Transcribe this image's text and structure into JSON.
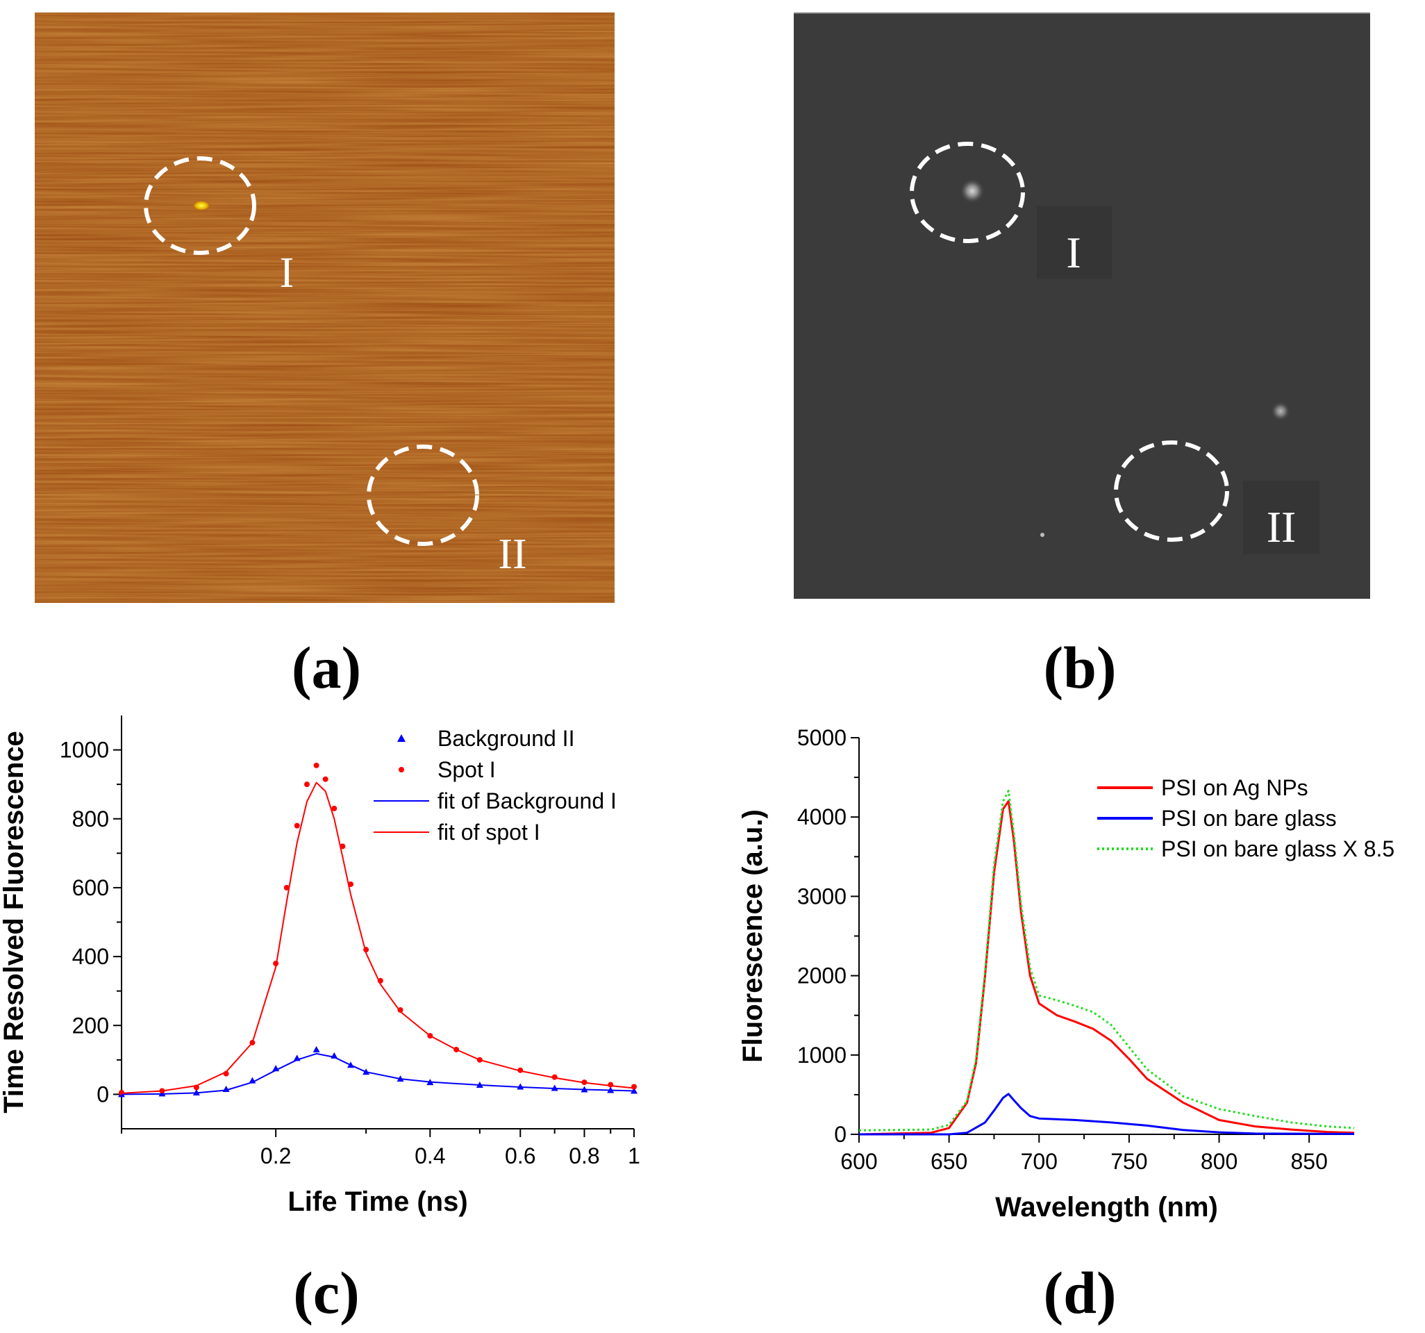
{
  "panels": {
    "a": {
      "label": "(a)",
      "marker_I": "I",
      "marker_II": "II"
    },
    "b": {
      "label": "(b)",
      "marker_I": "I",
      "marker_II": "II"
    },
    "c": {
      "label": "(c)"
    },
    "d": {
      "label": "(d)"
    }
  },
  "colors": {
    "afm_background": "#9a4a10",
    "afm_spot": "#ffe000",
    "fluor_background": "#3b3b3b",
    "circle": "#ffffff",
    "red": "#ff0000",
    "blue": "#0000ff",
    "green": "#22dd22"
  },
  "chart_data": [
    {
      "type": "scatter",
      "panel": "c",
      "xlabel": "Life Time (ns)",
      "ylabel": "Time Resolved Fluorescence",
      "xscale": "log",
      "xlim": [
        0.1,
        1.0
      ],
      "ylim": [
        -100,
        1100
      ],
      "xticks": [
        0.2,
        0.4,
        0.6,
        0.8,
        1.0
      ],
      "xtick_labels": [
        "0.2",
        "0.4",
        "0.6",
        "0.8",
        "1"
      ],
      "yticks": [
        0,
        200,
        400,
        600,
        800,
        1000
      ],
      "ytick_labels": [
        "0",
        "200",
        "400",
        "600",
        "800",
        "1000"
      ],
      "legend": [
        "Background II",
        "Spot I",
        "fit of Background I",
        "fit of spot I"
      ],
      "legend_position": "top-right",
      "series": [
        {
          "name": "Background II",
          "kind": "markers",
          "marker": "triangle",
          "color": "#0000ff",
          "x": [
            0.1,
            0.12,
            0.14,
            0.16,
            0.18,
            0.2,
            0.22,
            0.24,
            0.26,
            0.28,
            0.3,
            0.35,
            0.4,
            0.5,
            0.6,
            0.7,
            0.8,
            0.9,
            1.0
          ],
          "y": [
            0,
            2,
            5,
            15,
            40,
            75,
            105,
            130,
            112,
            85,
            65,
            45,
            35,
            27,
            22,
            18,
            14,
            12,
            10
          ]
        },
        {
          "name": "Spot I",
          "kind": "markers",
          "marker": "circle",
          "color": "#ff0000",
          "x": [
            0.1,
            0.12,
            0.14,
            0.16,
            0.18,
            0.2,
            0.21,
            0.22,
            0.23,
            0.24,
            0.25,
            0.26,
            0.27,
            0.28,
            0.3,
            0.32,
            0.35,
            0.4,
            0.45,
            0.5,
            0.6,
            0.7,
            0.8,
            0.9,
            1.0
          ],
          "y": [
            5,
            10,
            20,
            60,
            150,
            380,
            600,
            780,
            900,
            955,
            915,
            830,
            720,
            610,
            420,
            330,
            245,
            170,
            130,
            100,
            70,
            50,
            35,
            28,
            22
          ]
        },
        {
          "name": "fit of Background I",
          "kind": "line",
          "color": "#0000ff",
          "x": [
            0.1,
            0.12,
            0.14,
            0.16,
            0.18,
            0.2,
            0.22,
            0.24,
            0.26,
            0.28,
            0.3,
            0.35,
            0.4,
            0.5,
            0.6,
            0.7,
            0.8,
            0.9,
            1.0
          ],
          "y": [
            0,
            1,
            4,
            12,
            35,
            70,
            100,
            118,
            108,
            85,
            65,
            45,
            36,
            27,
            21,
            17,
            14,
            12,
            10
          ]
        },
        {
          "name": "fit of spot I",
          "kind": "line",
          "color": "#ff0000",
          "x": [
            0.1,
            0.12,
            0.14,
            0.16,
            0.18,
            0.2,
            0.21,
            0.22,
            0.23,
            0.24,
            0.25,
            0.26,
            0.27,
            0.28,
            0.3,
            0.32,
            0.35,
            0.4,
            0.45,
            0.5,
            0.6,
            0.7,
            0.8,
            0.9,
            1.0
          ],
          "y": [
            3,
            10,
            25,
            65,
            150,
            370,
            560,
            730,
            850,
            905,
            880,
            800,
            690,
            580,
            410,
            320,
            240,
            170,
            130,
            100,
            68,
            48,
            34,
            25,
            18
          ]
        }
      ]
    },
    {
      "type": "line",
      "panel": "d",
      "xlabel": "Wavelength (nm)",
      "ylabel": "Fluorescence (a.u.)",
      "xlim": [
        600,
        875
      ],
      "ylim": [
        0,
        5000
      ],
      "xticks": [
        600,
        650,
        700,
        750,
        800,
        850
      ],
      "xtick_labels": [
        "600",
        "650",
        "700",
        "750",
        "800",
        "850"
      ],
      "yticks": [
        0,
        1000,
        2000,
        3000,
        4000,
        5000
      ],
      "ytick_labels": [
        "0",
        "1000",
        "2000",
        "3000",
        "4000",
        "5000"
      ],
      "legend": [
        "PSI on Ag NPs",
        "PSI on bare glass",
        "PSI on bare glass X 8.5"
      ],
      "legend_position": "top-right",
      "series": [
        {
          "name": "PSI on Ag NPs",
          "kind": "line",
          "color": "#ff0000",
          "x": [
            600,
            640,
            650,
            660,
            665,
            670,
            675,
            680,
            683,
            686,
            690,
            695,
            700,
            710,
            720,
            730,
            740,
            750,
            760,
            780,
            800,
            820,
            840,
            860,
            875
          ],
          "y": [
            0,
            20,
            80,
            400,
            900,
            2000,
            3300,
            4100,
            4200,
            3700,
            2800,
            2000,
            1650,
            1500,
            1420,
            1330,
            1180,
            950,
            700,
            400,
            180,
            100,
            60,
            30,
            20
          ]
        },
        {
          "name": "PSI on bare glass",
          "kind": "line",
          "color": "#0000ff",
          "x": [
            600,
            650,
            660,
            670,
            675,
            680,
            683,
            686,
            690,
            695,
            700,
            720,
            740,
            760,
            780,
            800,
            820,
            875
          ],
          "y": [
            0,
            0,
            20,
            150,
            300,
            460,
            510,
            430,
            330,
            230,
            200,
            180,
            150,
            110,
            55,
            25,
            10,
            5
          ]
        },
        {
          "name": "PSI on bare glass X 8.5",
          "kind": "dotted",
          "color": "#22dd22",
          "x": [
            600,
            640,
            650,
            660,
            665,
            670,
            675,
            680,
            683,
            686,
            690,
            695,
            700,
            710,
            720,
            730,
            740,
            750,
            760,
            780,
            800,
            820,
            840,
            860,
            875
          ],
          "y": [
            50,
            60,
            120,
            420,
            950,
            2050,
            3400,
            4200,
            4330,
            3800,
            2900,
            2100,
            1750,
            1690,
            1620,
            1540,
            1380,
            1100,
            820,
            480,
            320,
            230,
            150,
            100,
            80
          ]
        }
      ]
    }
  ]
}
